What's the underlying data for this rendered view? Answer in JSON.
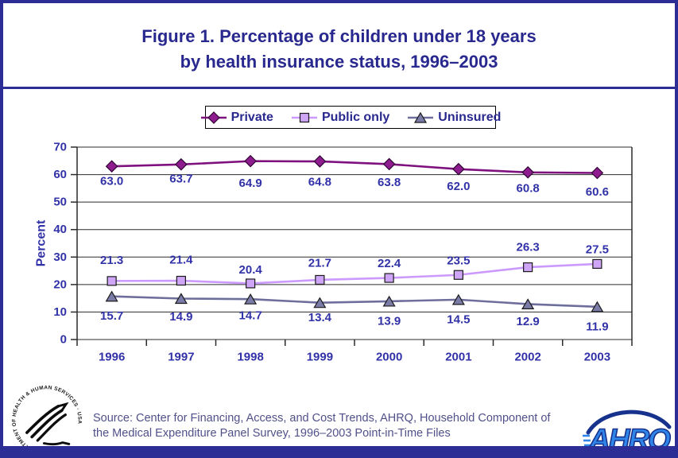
{
  "page": {
    "title_line1": "Figure 1. Percentage of children under 18 years",
    "title_line2": "by health insurance status, 1996–2003"
  },
  "colors": {
    "navy": "#2d2d96",
    "title_text": "#28288f",
    "axis_text": "#3232a8",
    "source_text": "#50508a"
  },
  "chart_data": {
    "type": "line",
    "title": "Figure 1. Percentage of children under 18 years by health insurance status, 1996–2003",
    "categories": [
      "1996",
      "1997",
      "1998",
      "1999",
      "2000",
      "2001",
      "2002",
      "2003"
    ],
    "series": [
      {
        "id": "private",
        "name": "Private",
        "marker": "diamond",
        "color": "#7f117f",
        "fill": "#8f1c8f",
        "edge": "#2e0433",
        "values": [
          63.0,
          63.7,
          64.9,
          64.8,
          63.8,
          62.0,
          60.8,
          60.6
        ]
      },
      {
        "id": "public-only",
        "name": "Public only",
        "marker": "square",
        "color": "#cc99ff",
        "fill": "#cfa6f7",
        "edge": "#1a1a1a",
        "values": [
          21.3,
          21.4,
          20.4,
          21.7,
          22.4,
          23.5,
          26.3,
          27.5
        ]
      },
      {
        "id": "uninsured",
        "name": "Uninsured",
        "marker": "triangle",
        "color": "#6e6e9c",
        "fill": "#7b7ba8",
        "edge": "#1a1a1a",
        "values": [
          15.7,
          14.9,
          14.7,
          13.4,
          13.9,
          14.5,
          12.9,
          11.9
        ]
      }
    ],
    "xlabel": "",
    "ylabel": "Percent",
    "ylim": [
      0,
      70
    ],
    "yticks": [
      0,
      10,
      20,
      30,
      40,
      50,
      60,
      70
    ],
    "grid": true,
    "legend_position": "top"
  },
  "source": {
    "line1": "Source: Center for Financing, Access, and Cost Trends, AHRQ, Household Component of",
    "line2": "the Medical Expenditure Panel Survey, 1996–2003 Point-in-Time Files"
  },
  "logos": {
    "hhs_seal_text": "DEPARTMENT OF HEALTH & HUMAN SERVICES · USA",
    "ahrq_text": "AHRQ"
  }
}
